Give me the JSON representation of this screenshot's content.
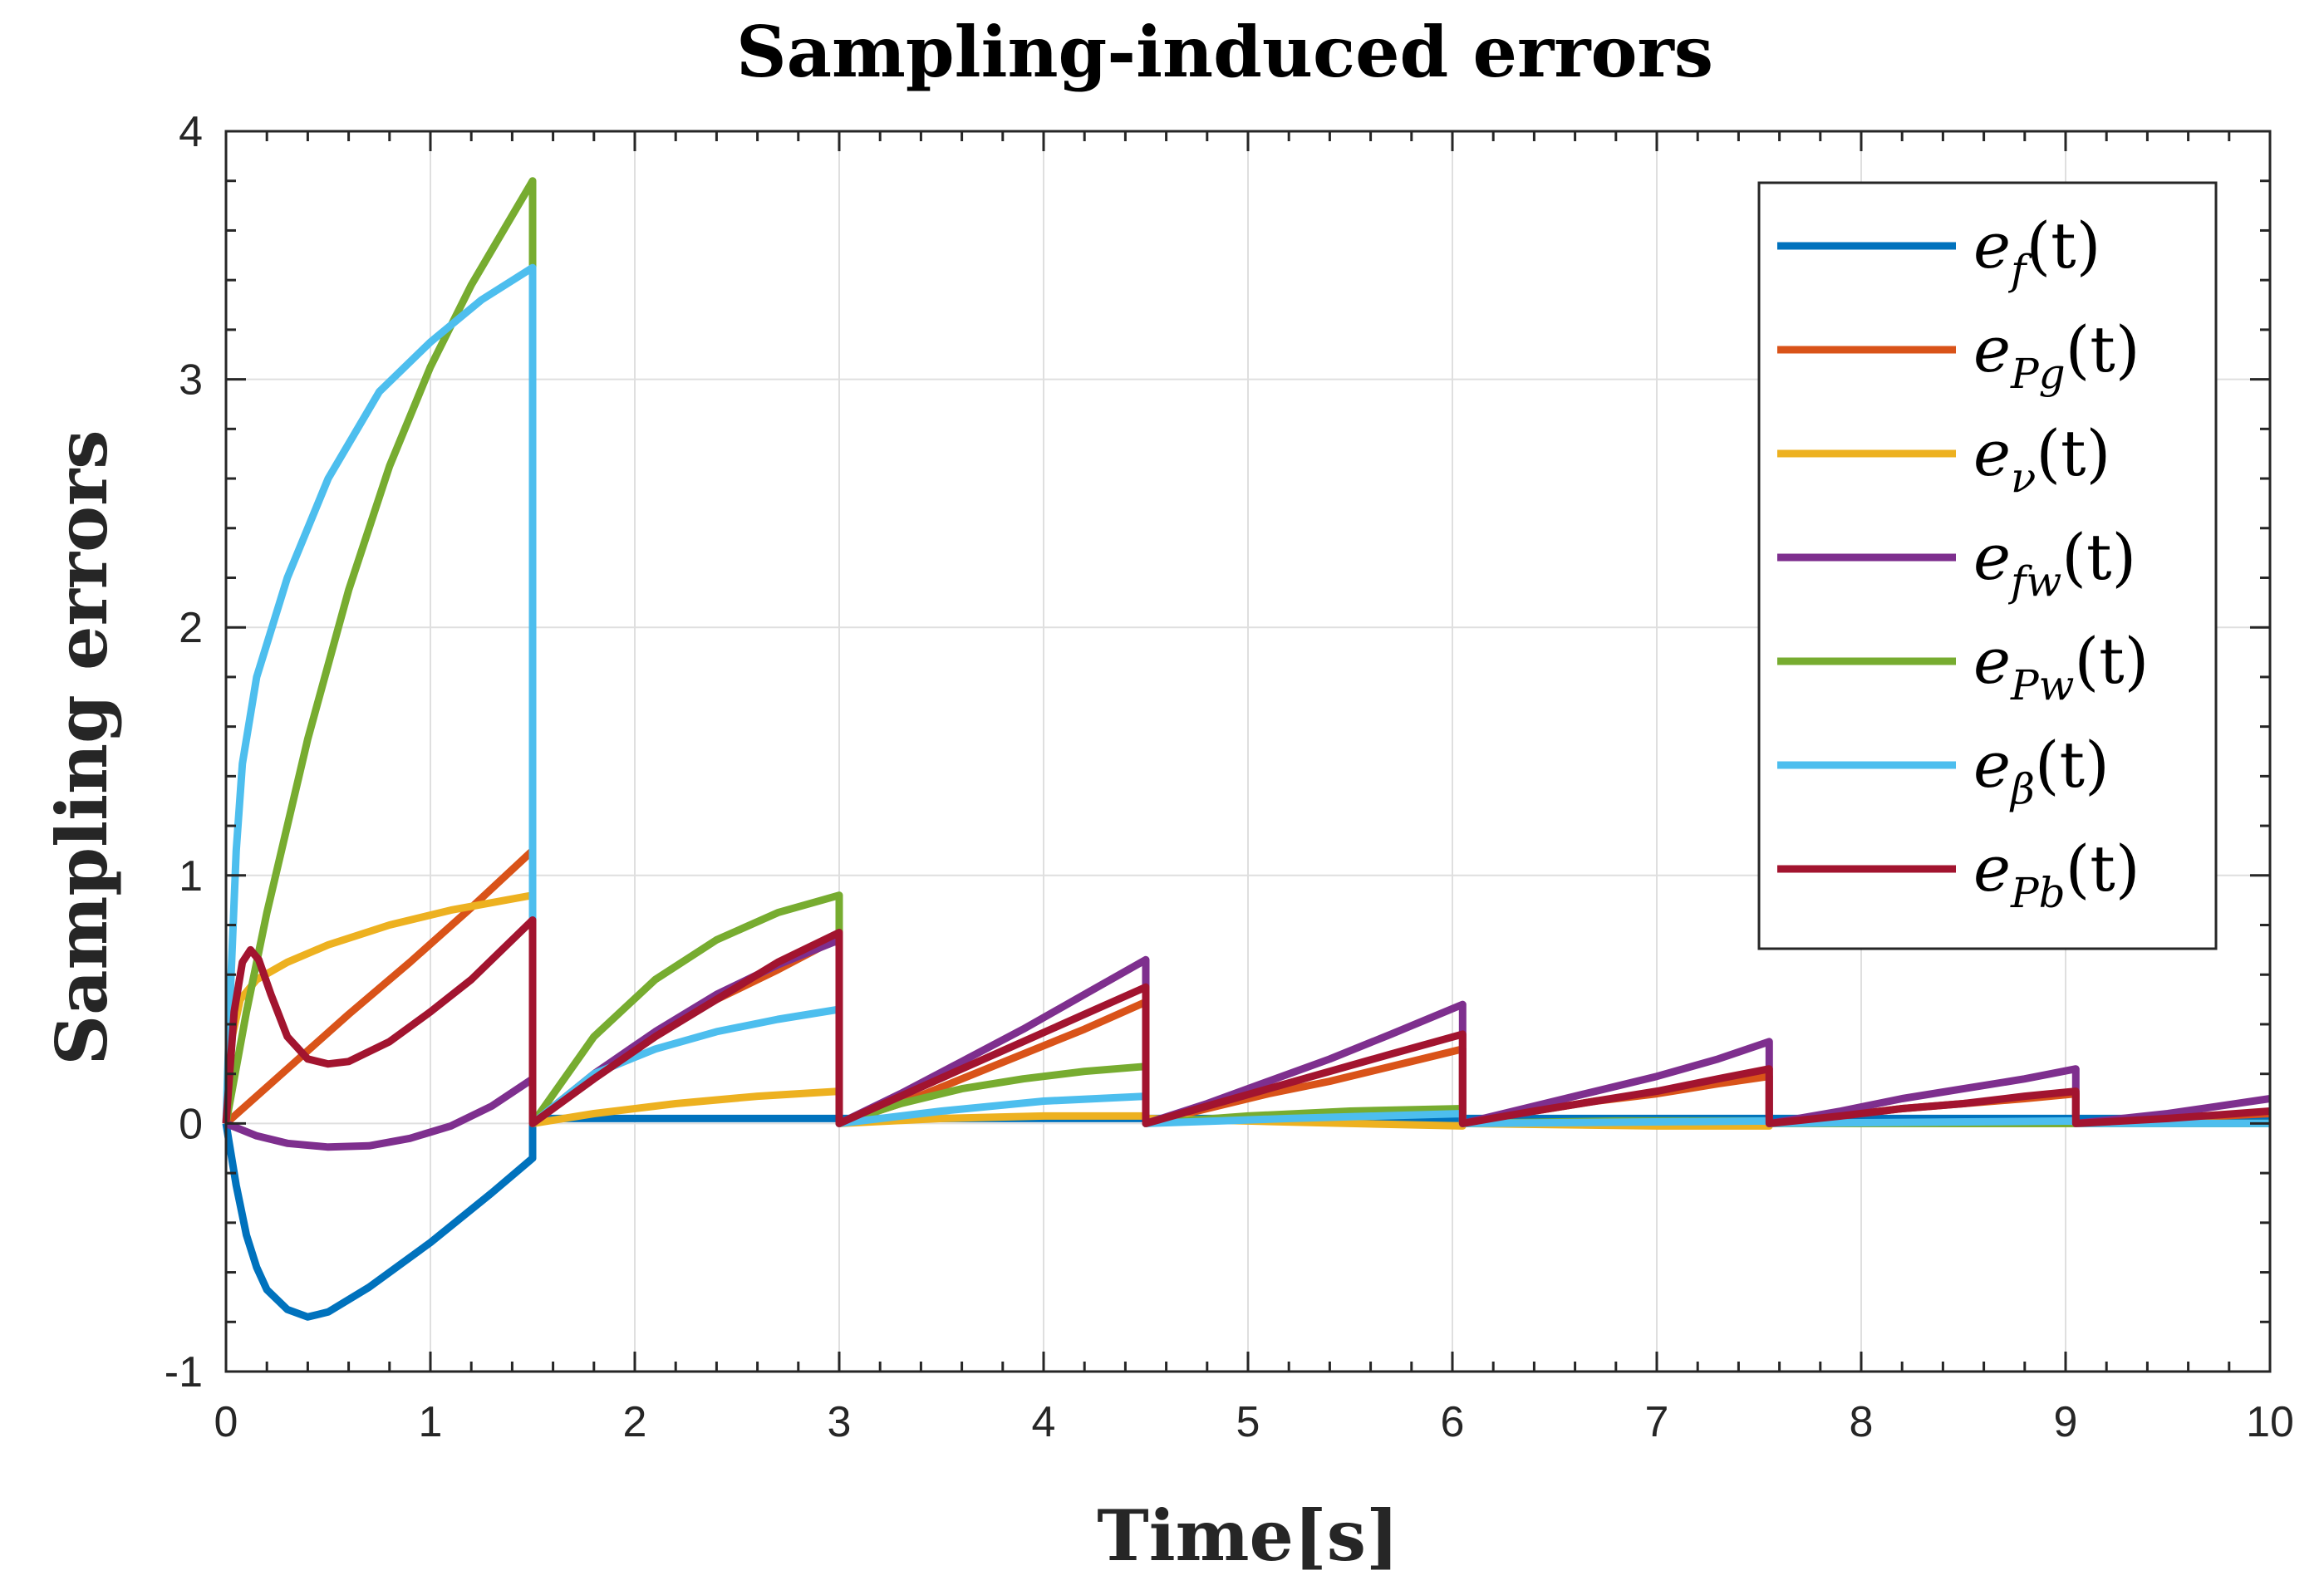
{
  "chart_data": {
    "type": "line",
    "title": "Sampling-induced errors",
    "xlabel": "Time[s]",
    "ylabel": "Sampling errors",
    "xlim": [
      0,
      10
    ],
    "ylim": [
      -1,
      4
    ],
    "grid": true,
    "legend_position": "top-right",
    "xticks": [
      "0",
      "1",
      "2",
      "3",
      "4",
      "5",
      "6",
      "7",
      "8",
      "9",
      "10"
    ],
    "yticks": [
      "-1",
      "0",
      "1",
      "2",
      "3",
      "4"
    ],
    "sample_times": [
      0,
      1.5,
      3.0,
      4.5,
      6.05,
      7.55,
      9.05
    ],
    "series": [
      {
        "name": "e_f(t)",
        "base": "e",
        "sub": "f",
        "color": "#0072BD",
        "points": [
          [
            0,
            0
          ],
          [
            0.05,
            -0.25
          ],
          [
            0.1,
            -0.45
          ],
          [
            0.15,
            -0.58
          ],
          [
            0.2,
            -0.67
          ],
          [
            0.3,
            -0.75
          ],
          [
            0.4,
            -0.78
          ],
          [
            0.5,
            -0.76
          ],
          [
            0.7,
            -0.66
          ],
          [
            1.0,
            -0.48
          ],
          [
            1.3,
            -0.28
          ],
          [
            1.5,
            -0.14
          ],
          [
            1.5,
            0.02
          ],
          [
            3.0,
            0.02
          ],
          [
            3.0,
            0.02
          ],
          [
            4.5,
            0.02
          ],
          [
            4.5,
            0.02
          ],
          [
            6.05,
            0.02
          ],
          [
            6.05,
            0.02
          ],
          [
            7.55,
            0.02
          ],
          [
            7.55,
            0.02
          ],
          [
            9.05,
            0.02
          ],
          [
            9.05,
            0.02
          ],
          [
            10,
            0.02
          ]
        ]
      },
      {
        "name": "e_Pg(t)",
        "base": "e",
        "sub": "Pg",
        "color": "#D95319",
        "points": [
          [
            0,
            0
          ],
          [
            0.3,
            0.22
          ],
          [
            0.6,
            0.44
          ],
          [
            0.9,
            0.65
          ],
          [
            1.2,
            0.87
          ],
          [
            1.5,
            1.1
          ],
          [
            1.5,
            0
          ],
          [
            1.8,
            0.2
          ],
          [
            2.1,
            0.36
          ],
          [
            2.4,
            0.5
          ],
          [
            2.7,
            0.62
          ],
          [
            3.0,
            0.75
          ],
          [
            3.0,
            0
          ],
          [
            3.3,
            0.08
          ],
          [
            3.6,
            0.18
          ],
          [
            3.9,
            0.28
          ],
          [
            4.2,
            0.38
          ],
          [
            4.5,
            0.49
          ],
          [
            4.5,
            0
          ],
          [
            4.8,
            0.06
          ],
          [
            5.1,
            0.12
          ],
          [
            5.4,
            0.17
          ],
          [
            5.7,
            0.23
          ],
          [
            6.05,
            0.3
          ],
          [
            6.05,
            0
          ],
          [
            6.4,
            0.05
          ],
          [
            6.7,
            0.09
          ],
          [
            7.0,
            0.12
          ],
          [
            7.3,
            0.16
          ],
          [
            7.55,
            0.19
          ],
          [
            7.55,
            0
          ],
          [
            7.9,
            0.03
          ],
          [
            8.2,
            0.06
          ],
          [
            8.5,
            0.08
          ],
          [
            8.8,
            0.1
          ],
          [
            9.05,
            0.12
          ],
          [
            9.05,
            0
          ],
          [
            9.5,
            0.02
          ],
          [
            10,
            0.04
          ]
        ]
      },
      {
        "name": "e_ν(t)",
        "base": "e",
        "sub": "ν",
        "color": "#EDB120",
        "points": [
          [
            0,
            0
          ],
          [
            0.03,
            0.35
          ],
          [
            0.07,
            0.5
          ],
          [
            0.15,
            0.58
          ],
          [
            0.3,
            0.65
          ],
          [
            0.5,
            0.72
          ],
          [
            0.8,
            0.8
          ],
          [
            1.1,
            0.86
          ],
          [
            1.5,
            0.92
          ],
          [
            1.5,
            0
          ],
          [
            1.8,
            0.04
          ],
          [
            2.2,
            0.08
          ],
          [
            2.6,
            0.11
          ],
          [
            3.0,
            0.13
          ],
          [
            3.0,
            0
          ],
          [
            3.5,
            0.02
          ],
          [
            4.0,
            0.03
          ],
          [
            4.5,
            0.03
          ],
          [
            4.5,
            0.02
          ],
          [
            5.0,
            0.01
          ],
          [
            5.5,
            0.0
          ],
          [
            6.05,
            -0.01
          ],
          [
            6.05,
            0
          ],
          [
            7.0,
            -0.01
          ],
          [
            7.55,
            -0.01
          ],
          [
            7.55,
            0
          ],
          [
            8.5,
            0
          ],
          [
            9.05,
            0
          ],
          [
            9.05,
            0
          ],
          [
            10,
            0
          ]
        ]
      },
      {
        "name": "e_fw(t)",
        "base": "e",
        "sub": "fw",
        "color": "#7E2F8E",
        "points": [
          [
            0,
            0
          ],
          [
            0.15,
            -0.05
          ],
          [
            0.3,
            -0.08
          ],
          [
            0.5,
            -0.095
          ],
          [
            0.7,
            -0.09
          ],
          [
            0.9,
            -0.06
          ],
          [
            1.1,
            -0.01
          ],
          [
            1.3,
            0.07
          ],
          [
            1.5,
            0.18
          ],
          [
            1.5,
            0
          ],
          [
            1.8,
            0.2
          ],
          [
            2.1,
            0.37
          ],
          [
            2.4,
            0.52
          ],
          [
            2.7,
            0.64
          ],
          [
            3.0,
            0.74
          ],
          [
            3.0,
            0
          ],
          [
            3.3,
            0.12
          ],
          [
            3.6,
            0.25
          ],
          [
            3.9,
            0.38
          ],
          [
            4.2,
            0.52
          ],
          [
            4.5,
            0.66
          ],
          [
            4.5,
            0
          ],
          [
            4.8,
            0.08
          ],
          [
            5.1,
            0.17
          ],
          [
            5.4,
            0.26
          ],
          [
            5.7,
            0.36
          ],
          [
            6.05,
            0.48
          ],
          [
            6.05,
            0
          ],
          [
            6.4,
            0.07
          ],
          [
            6.7,
            0.13
          ],
          [
            7.0,
            0.19
          ],
          [
            7.3,
            0.26
          ],
          [
            7.55,
            0.33
          ],
          [
            7.55,
            0
          ],
          [
            7.9,
            0.05
          ],
          [
            8.2,
            0.1
          ],
          [
            8.5,
            0.14
          ],
          [
            8.8,
            0.18
          ],
          [
            9.05,
            0.22
          ],
          [
            9.05,
            0
          ],
          [
            9.5,
            0.04
          ],
          [
            10,
            0.1
          ]
        ]
      },
      {
        "name": "e_Pw(t)",
        "base": "e",
        "sub": "Pw",
        "color": "#77AC30",
        "points": [
          [
            0,
            0
          ],
          [
            0.1,
            0.45
          ],
          [
            0.2,
            0.85
          ],
          [
            0.4,
            1.55
          ],
          [
            0.6,
            2.15
          ],
          [
            0.8,
            2.65
          ],
          [
            1.0,
            3.05
          ],
          [
            1.2,
            3.38
          ],
          [
            1.5,
            3.8
          ],
          [
            1.5,
            0
          ],
          [
            1.8,
            0.35
          ],
          [
            2.1,
            0.58
          ],
          [
            2.4,
            0.74
          ],
          [
            2.7,
            0.85
          ],
          [
            3.0,
            0.92
          ],
          [
            3.0,
            0
          ],
          [
            3.3,
            0.08
          ],
          [
            3.6,
            0.14
          ],
          [
            3.9,
            0.18
          ],
          [
            4.2,
            0.21
          ],
          [
            4.5,
            0.23
          ],
          [
            4.5,
            0
          ],
          [
            5.0,
            0.03
          ],
          [
            5.5,
            0.05
          ],
          [
            6.05,
            0.06
          ],
          [
            6.05,
            0
          ],
          [
            6.8,
            0.01
          ],
          [
            7.55,
            0.01
          ],
          [
            7.55,
            0
          ],
          [
            8.5,
            0
          ],
          [
            9.05,
            0
          ],
          [
            9.05,
            0
          ],
          [
            10,
            0
          ]
        ]
      },
      {
        "name": "e_β(t)",
        "base": "e",
        "sub": "β",
        "color": "#4DBEEE",
        "points": [
          [
            0,
            0
          ],
          [
            0.02,
            0.5
          ],
          [
            0.05,
            1.1
          ],
          [
            0.08,
            1.45
          ],
          [
            0.15,
            1.8
          ],
          [
            0.3,
            2.2
          ],
          [
            0.5,
            2.6
          ],
          [
            0.75,
            2.95
          ],
          [
            1.0,
            3.15
          ],
          [
            1.25,
            3.32
          ],
          [
            1.5,
            3.45
          ],
          [
            1.5,
            0
          ],
          [
            1.8,
            0.2
          ],
          [
            2.1,
            0.3
          ],
          [
            2.4,
            0.37
          ],
          [
            2.7,
            0.42
          ],
          [
            3.0,
            0.46
          ],
          [
            3.0,
            0
          ],
          [
            3.5,
            0.05
          ],
          [
            4.0,
            0.09
          ],
          [
            4.5,
            0.11
          ],
          [
            4.5,
            0
          ],
          [
            5.2,
            0.02
          ],
          [
            6.05,
            0.04
          ],
          [
            6.05,
            0
          ],
          [
            7.55,
            0.01
          ],
          [
            7.55,
            0
          ],
          [
            9.05,
            0.01
          ],
          [
            9.05,
            0
          ],
          [
            10,
            0
          ]
        ]
      },
      {
        "name": "e_Pb(t)",
        "base": "e",
        "sub": "Pb",
        "color": "#A2142F",
        "points": [
          [
            0,
            0
          ],
          [
            0.04,
            0.45
          ],
          [
            0.08,
            0.65
          ],
          [
            0.12,
            0.7
          ],
          [
            0.16,
            0.66
          ],
          [
            0.22,
            0.52
          ],
          [
            0.3,
            0.35
          ],
          [
            0.4,
            0.26
          ],
          [
            0.5,
            0.24
          ],
          [
            0.6,
            0.25
          ],
          [
            0.8,
            0.33
          ],
          [
            1.0,
            0.45
          ],
          [
            1.2,
            0.58
          ],
          [
            1.5,
            0.82
          ],
          [
            1.5,
            0
          ],
          [
            1.8,
            0.18
          ],
          [
            2.1,
            0.35
          ],
          [
            2.4,
            0.5
          ],
          [
            2.7,
            0.65
          ],
          [
            3.0,
            0.77
          ],
          [
            3.0,
            0
          ],
          [
            3.3,
            0.11
          ],
          [
            3.6,
            0.22
          ],
          [
            3.9,
            0.33
          ],
          [
            4.2,
            0.44
          ],
          [
            4.5,
            0.55
          ],
          [
            4.5,
            0
          ],
          [
            4.8,
            0.07
          ],
          [
            5.1,
            0.14
          ],
          [
            5.4,
            0.21
          ],
          [
            5.7,
            0.28
          ],
          [
            6.05,
            0.36
          ],
          [
            6.05,
            0
          ],
          [
            6.4,
            0.05
          ],
          [
            6.7,
            0.09
          ],
          [
            7.0,
            0.13
          ],
          [
            7.3,
            0.18
          ],
          [
            7.55,
            0.22
          ],
          [
            7.55,
            0
          ],
          [
            7.9,
            0.03
          ],
          [
            8.2,
            0.06
          ],
          [
            8.5,
            0.08
          ],
          [
            8.8,
            0.11
          ],
          [
            9.05,
            0.13
          ],
          [
            9.05,
            0
          ],
          [
            9.5,
            0.02
          ],
          [
            10,
            0.05
          ]
        ]
      }
    ]
  }
}
